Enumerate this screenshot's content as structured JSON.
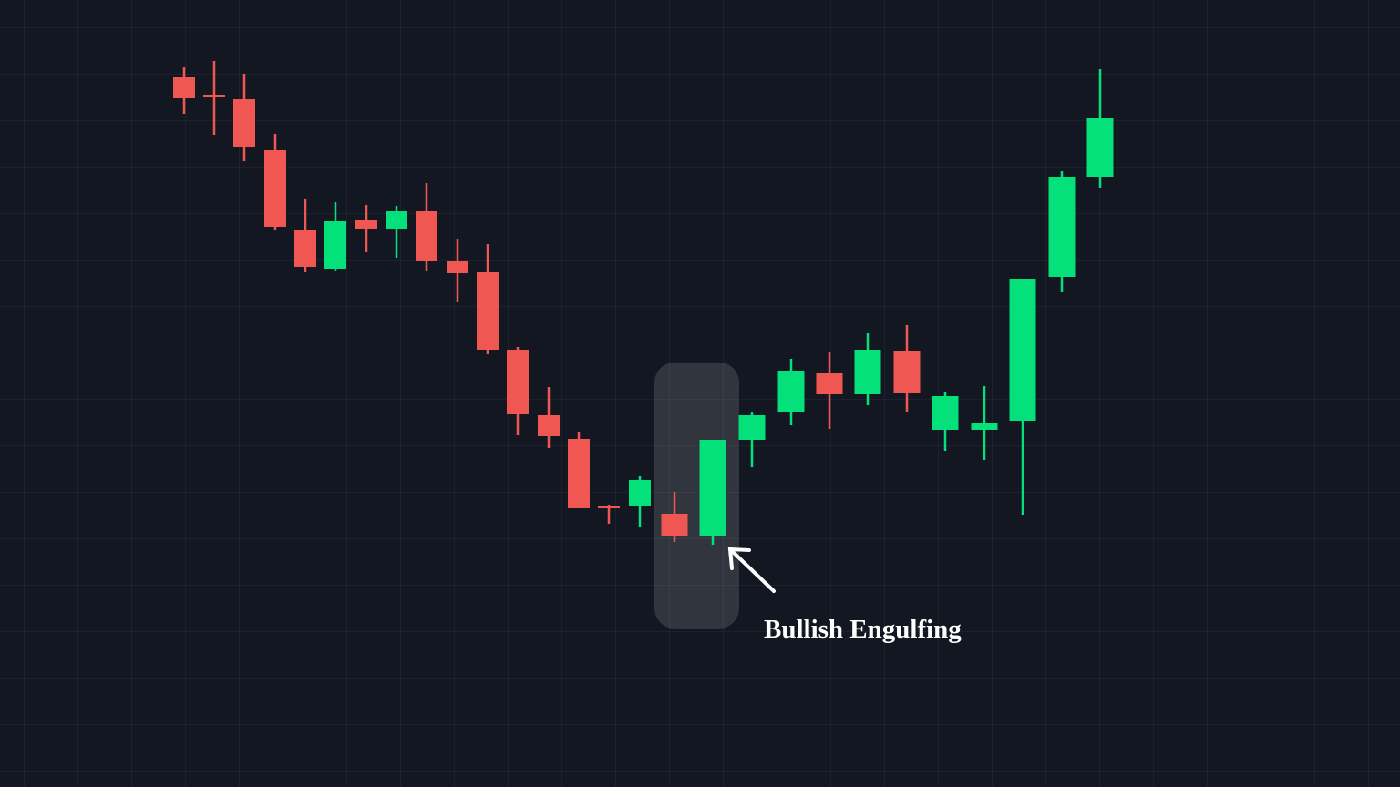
{
  "chart_data": {
    "type": "candlestick",
    "annotation": "Bullish Engulfing",
    "ylim": [
      0,
      864
    ],
    "up_color": "#04e07a",
    "down_color": "#f05752",
    "open": [
      780,
      760,
      755,
      699,
      611,
      569,
      623,
      613,
      632,
      577,
      565,
      480,
      408,
      382,
      309,
      309,
      300,
      276,
      381,
      412,
      455,
      431,
      479,
      392,
      392,
      402,
      560,
      670
    ],
    "high": [
      790,
      797,
      783,
      717,
      645,
      642,
      639,
      638,
      663,
      602,
      596,
      483,
      439,
      390,
      310,
      341,
      324,
      381,
      412,
      470,
      478,
      498,
      507,
      434,
      440,
      558,
      676,
      788
    ],
    "low": [
      739,
      716,
      687,
      612,
      565,
      566,
      587,
      581,
      567,
      532,
      475,
      386,
      372,
      306,
      289,
      285,
      269,
      266,
      351,
      397,
      393,
      419,
      412,
      369,
      359,
      299,
      543,
      658
    ],
    "close": [
      756,
      758,
      703,
      615,
      571,
      621,
      613,
      632,
      577,
      564,
      480,
      410,
      385,
      306,
      306,
      337,
      276,
      381,
      408,
      457,
      431,
      480,
      432,
      429,
      400,
      558,
      670,
      735
    ]
  }
}
